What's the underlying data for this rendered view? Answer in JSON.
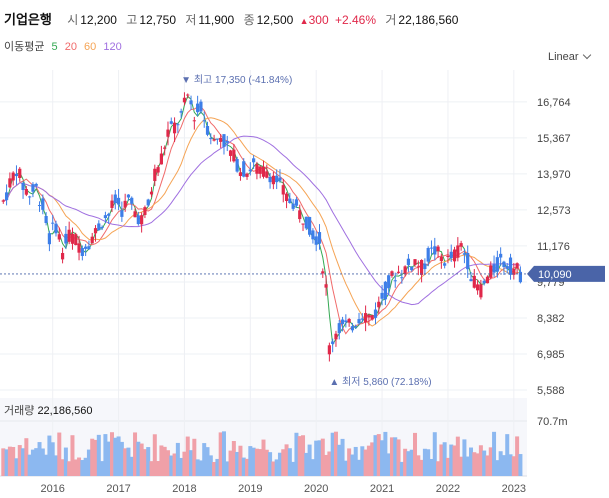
{
  "header": {
    "name": "기업은행",
    "open_label": "시",
    "open": "12,200",
    "high_label": "고",
    "high": "12,750",
    "low_label": "저",
    "low": "11,900",
    "close_label": "종",
    "close": "12,500",
    "change_arrow": "▲",
    "change": "300",
    "change_pct": "+2.46%",
    "volume_label": "거",
    "volume": "22,186,560"
  },
  "ma": {
    "title": "이동평균",
    "items": [
      {
        "label": "5",
        "color": "#34a853"
      },
      {
        "label": "20",
        "color": "#f06a6a"
      },
      {
        "label": "60",
        "color": "#f5a455"
      },
      {
        "label": "120",
        "color": "#a070e0"
      }
    ]
  },
  "scale_mode": "Linear",
  "price_tag": "10,090",
  "annotations": {
    "high": {
      "marker": "▼",
      "label": "최고",
      "value": "17,350",
      "pct": "(-41.84%)"
    },
    "low": {
      "marker": "▲",
      "label": "최저",
      "value": "5,860",
      "pct": "(72.18%)"
    }
  },
  "volume_panel": {
    "label": "거래량",
    "value": "22,186,560",
    "axis_label": "70.7m"
  },
  "colors": {
    "up": "#e0284a",
    "down": "#3d7ee8",
    "vol_up": "#f0a0a8",
    "vol_down": "#8cb8f0",
    "tag": "#4a64a8"
  },
  "chart_data": {
    "type": "candlestick",
    "y_ticks": [
      "16,764",
      "15,367",
      "13,970",
      "12,573",
      "11,176",
      "9,779",
      "8,382",
      "6,985",
      "5,588"
    ],
    "y_tick_values": [
      16764,
      15367,
      13970,
      12573,
      11176,
      9779,
      8382,
      6985,
      5588
    ],
    "ylim": [
      5588,
      18000
    ],
    "x_ticks": [
      "2016",
      "2017",
      "2018",
      "2019",
      "2020",
      "2021",
      "2022",
      "2023"
    ],
    "xlim": [
      2015.2,
      2023.2
    ],
    "grid": true,
    "close_series": [
      [
        2015.25,
        12900
      ],
      [
        2015.35,
        13600
      ],
      [
        2015.45,
        14200
      ],
      [
        2015.55,
        13500
      ],
      [
        2015.65,
        13200
      ],
      [
        2015.75,
        13400
      ],
      [
        2015.85,
        12700
      ],
      [
        2015.95,
        11500
      ],
      [
        2016.05,
        12000
      ],
      [
        2016.15,
        11000
      ],
      [
        2016.25,
        11600
      ],
      [
        2016.35,
        11400
      ],
      [
        2016.45,
        11100
      ],
      [
        2016.55,
        11400
      ],
      [
        2016.65,
        11700
      ],
      [
        2016.75,
        12200
      ],
      [
        2016.85,
        12400
      ],
      [
        2016.95,
        12900
      ],
      [
        2017.05,
        12600
      ],
      [
        2017.15,
        12900
      ],
      [
        2017.25,
        12500
      ],
      [
        2017.35,
        12200
      ],
      [
        2017.45,
        12700
      ],
      [
        2017.55,
        14000
      ],
      [
        2017.65,
        14600
      ],
      [
        2017.75,
        15600
      ],
      [
        2017.85,
        15800
      ],
      [
        2017.95,
        16200
      ],
      [
        2018.05,
        17000
      ],
      [
        2018.15,
        16300
      ],
      [
        2018.25,
        16500
      ],
      [
        2018.35,
        15800
      ],
      [
        2018.45,
        15200
      ],
      [
        2018.55,
        15500
      ],
      [
        2018.65,
        15000
      ],
      [
        2018.75,
        14600
      ],
      [
        2018.85,
        14200
      ],
      [
        2018.95,
        14100
      ],
      [
        2019.05,
        14300
      ],
      [
        2019.15,
        14000
      ],
      [
        2019.25,
        14100
      ],
      [
        2019.35,
        13900
      ],
      [
        2019.45,
        13500
      ],
      [
        2019.55,
        13000
      ],
      [
        2019.65,
        12900
      ],
      [
        2019.75,
        12400
      ],
      [
        2019.85,
        12200
      ],
      [
        2019.95,
        11700
      ],
      [
        2020.05,
        11400
      ],
      [
        2020.15,
        9500
      ],
      [
        2020.2,
        7200
      ],
      [
        2020.3,
        7900
      ],
      [
        2020.4,
        8100
      ],
      [
        2020.5,
        8000
      ],
      [
        2020.6,
        8300
      ],
      [
        2020.7,
        8600
      ],
      [
        2020.8,
        8400
      ],
      [
        2020.9,
        8600
      ],
      [
        2021.0,
        9200
      ],
      [
        2021.1,
        9700
      ],
      [
        2021.2,
        10100
      ],
      [
        2021.3,
        10200
      ],
      [
        2021.4,
        10400
      ],
      [
        2021.5,
        10600
      ],
      [
        2021.6,
        10300
      ],
      [
        2021.7,
        10800
      ],
      [
        2021.8,
        11000
      ],
      [
        2021.9,
        10700
      ],
      [
        2022.0,
        10600
      ],
      [
        2022.1,
        10800
      ],
      [
        2022.2,
        11200
      ],
      [
        2022.3,
        10600
      ],
      [
        2022.4,
        9700
      ],
      [
        2022.5,
        9500
      ],
      [
        2022.6,
        9900
      ],
      [
        2022.7,
        10300
      ],
      [
        2022.8,
        10600
      ],
      [
        2022.9,
        10500
      ],
      [
        2023.0,
        10300
      ],
      [
        2023.1,
        10100
      ]
    ]
  }
}
